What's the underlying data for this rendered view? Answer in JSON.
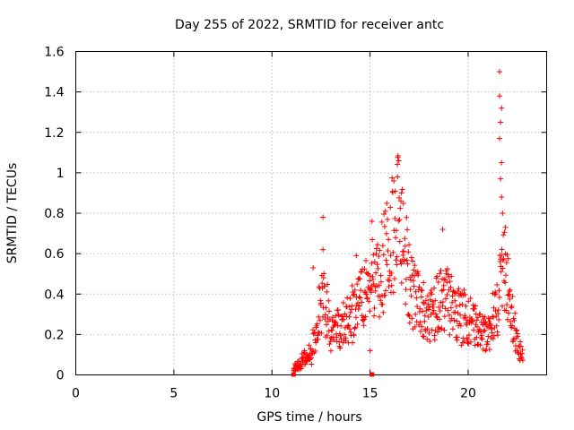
{
  "chart_data": {
    "type": "scatter",
    "title": "Day 255 of 2022, SRMTID for receiver antc",
    "xlabel": "GPS time / hours",
    "ylabel": "SRMTID / TECUs",
    "xlim": [
      0,
      24
    ],
    "ylim": [
      0,
      1.6
    ],
    "grid": true,
    "marker": "+",
    "color": "#ff0000",
    "x_ticks": [
      0,
      5,
      10,
      15,
      20
    ],
    "x_tick_labels": [
      "0",
      "5",
      "10",
      "15",
      "20"
    ],
    "y_ticks": [
      0,
      0.2,
      0.4,
      0.6,
      0.8,
      1.0,
      1.2,
      1.4,
      1.6
    ],
    "y_tick_labels": [
      "0",
      "0.2",
      "0.4",
      "0.6",
      "0.8",
      "1",
      "1.2",
      "1.4",
      "1.6"
    ],
    "series_envelope": [
      {
        "x": 11.1,
        "y": 0.02
      },
      {
        "x": 11.4,
        "y": 0.06
      },
      {
        "x": 11.7,
        "y": 0.08
      },
      {
        "x": 12.0,
        "y": 0.1
      },
      {
        "x": 12.3,
        "y": 0.25
      },
      {
        "x": 12.6,
        "y": 0.4
      },
      {
        "x": 13.0,
        "y": 0.22
      },
      {
        "x": 13.5,
        "y": 0.25
      },
      {
        "x": 14.0,
        "y": 0.3
      },
      {
        "x": 14.5,
        "y": 0.35
      },
      {
        "x": 15.0,
        "y": 0.45
      },
      {
        "x": 15.5,
        "y": 0.5
      },
      {
        "x": 16.0,
        "y": 0.65
      },
      {
        "x": 16.5,
        "y": 0.8
      },
      {
        "x": 17.0,
        "y": 0.45
      },
      {
        "x": 17.5,
        "y": 0.35
      },
      {
        "x": 18.0,
        "y": 0.28
      },
      {
        "x": 18.5,
        "y": 0.35
      },
      {
        "x": 19.0,
        "y": 0.38
      },
      {
        "x": 19.5,
        "y": 0.3
      },
      {
        "x": 20.0,
        "y": 0.28
      },
      {
        "x": 20.5,
        "y": 0.22
      },
      {
        "x": 21.0,
        "y": 0.2
      },
      {
        "x": 21.5,
        "y": 0.35
      },
      {
        "x": 21.8,
        "y": 0.55
      },
      {
        "x": 22.0,
        "y": 0.45
      },
      {
        "x": 22.3,
        "y": 0.25
      },
      {
        "x": 22.6,
        "y": 0.12
      },
      {
        "x": 22.8,
        "y": 0.08
      }
    ],
    "spikes": [
      {
        "x": 12.1,
        "y": 0.53
      },
      {
        "x": 12.6,
        "y": 0.78
      },
      {
        "x": 12.6,
        "y": 0.62
      },
      {
        "x": 14.3,
        "y": 0.59
      },
      {
        "x": 15.1,
        "y": 0.76
      },
      {
        "x": 16.4,
        "y": 0.98
      },
      {
        "x": 16.6,
        "y": 0.9
      },
      {
        "x": 18.7,
        "y": 0.72
      },
      {
        "x": 21.6,
        "y": 1.5
      },
      {
        "x": 21.6,
        "y": 1.38
      },
      {
        "x": 21.7,
        "y": 1.32
      },
      {
        "x": 21.65,
        "y": 1.25
      },
      {
        "x": 21.6,
        "y": 1.17
      },
      {
        "x": 21.7,
        "y": 1.05
      },
      {
        "x": 21.65,
        "y": 0.97
      },
      {
        "x": 21.7,
        "y": 0.88
      },
      {
        "x": 21.75,
        "y": 0.8
      },
      {
        "x": 21.9,
        "y": 0.73
      },
      {
        "x": 15.0,
        "y": 0.12
      }
    ],
    "zero_markers": [
      {
        "x": 11.1,
        "y": 0.0
      },
      {
        "x": 15.1,
        "y": 0.0
      }
    ]
  }
}
